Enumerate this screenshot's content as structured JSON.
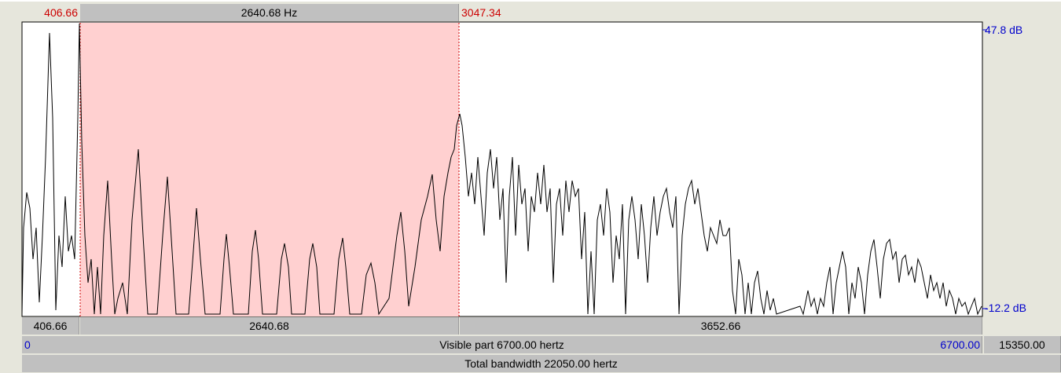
{
  "selection": {
    "start_label": "406.66",
    "width_label": "2640.68 Hz",
    "end_label": "3047.34"
  },
  "axis": {
    "top": "47.8 dB",
    "bottom": "-12.2 dB"
  },
  "bottom_bar": {
    "before": "406.66",
    "selection": "2640.68",
    "after": "3652.66"
  },
  "visible_bar": {
    "start": "0",
    "label": "Visible part 6700.00 hertz",
    "end": "6700.00"
  },
  "after_visible": "15350.00",
  "total_bar": "Total bandwidth 22050.00 hertz"
}
